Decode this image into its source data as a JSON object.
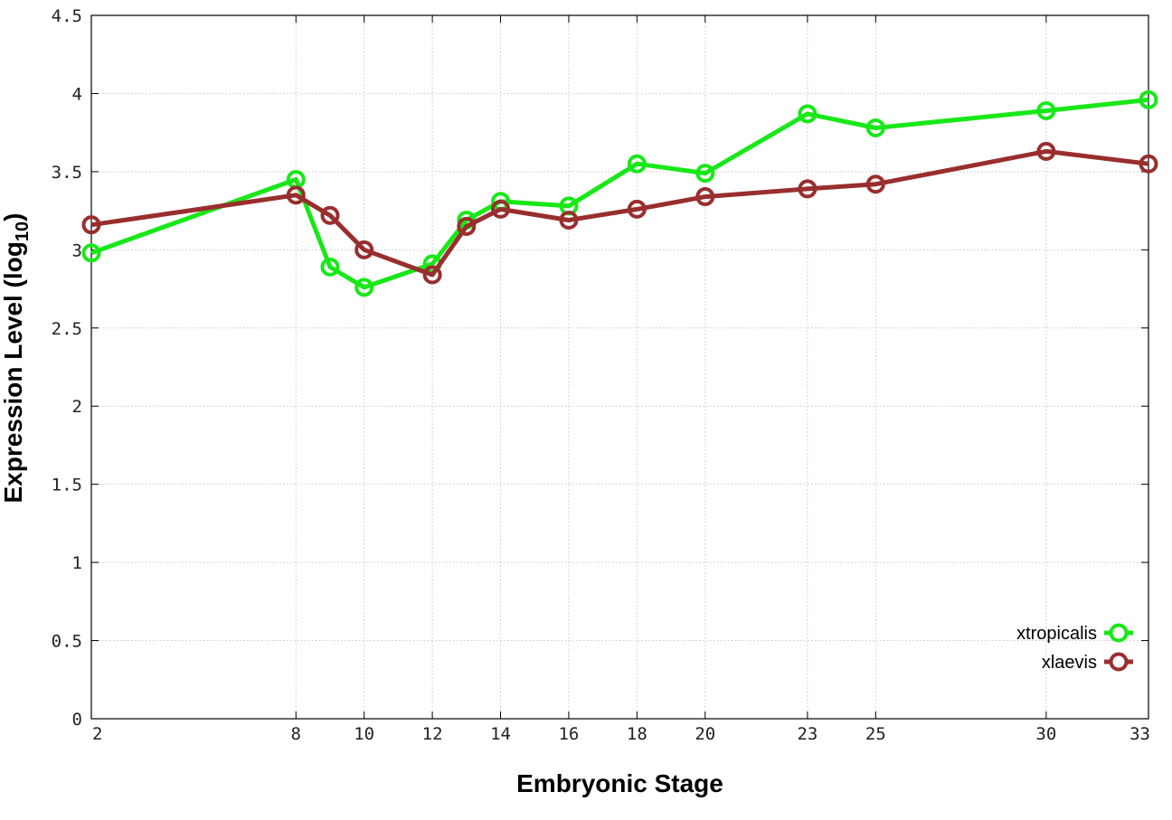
{
  "chart_data": {
    "type": "line",
    "xlabel": "Embryonic Stage",
    "ylabel_main": "Expression Level (log",
    "ylabel_sub": "10",
    "ylabel_close": ")",
    "x": [
      2,
      8,
      9,
      10,
      12,
      13,
      14,
      16,
      18,
      20,
      23,
      25,
      30,
      33
    ],
    "x_ticks": [
      2,
      8,
      10,
      12,
      14,
      16,
      18,
      20,
      23,
      25,
      30,
      33
    ],
    "x_tick_labels": [
      "2",
      "8",
      "10",
      "12",
      "14",
      "16",
      "18",
      "20",
      "23",
      "25",
      "30",
      "33"
    ],
    "ylim": [
      0,
      4.5
    ],
    "y_ticks": [
      0,
      0.5,
      1,
      1.5,
      2,
      2.5,
      3,
      3.5,
      4,
      4.5
    ],
    "y_tick_labels": [
      "0",
      "0.5",
      "1",
      "1.5",
      "2",
      "2.5",
      "3",
      "3.5",
      "4",
      "4.5"
    ],
    "grid": true,
    "legend_position": "bottom-right",
    "series": [
      {
        "name": "xtropicalis",
        "color": "#18e818",
        "values": [
          2.98,
          3.45,
          2.89,
          2.76,
          2.91,
          3.19,
          3.31,
          3.28,
          3.55,
          3.49,
          3.87,
          3.78,
          3.89,
          3.96
        ]
      },
      {
        "name": "xlaevis",
        "color": "#992e2e",
        "values": [
          3.16,
          3.35,
          3.22,
          3.0,
          2.84,
          3.15,
          3.26,
          3.19,
          3.26,
          3.34,
          3.39,
          3.42,
          3.63,
          3.55
        ]
      }
    ]
  }
}
